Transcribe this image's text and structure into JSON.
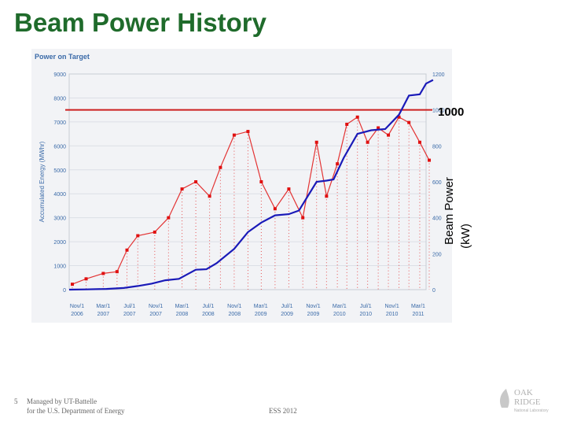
{
  "slide": {
    "title": "Beam Power History",
    "page_number": "5",
    "footer_line1": "Managed by UT-Battelle",
    "footer_line2": "for the U.S. Department of Energy",
    "footer_center": "ESS 2012",
    "logo_text": [
      "OAK",
      "RIDGE",
      "National Laboratory"
    ]
  },
  "chart_data": {
    "type": "line",
    "title": "Power on Target",
    "ylabel": "Accumulated Energy (MWhr)",
    "y2label_lines": [
      "Beam Power",
      "(kW)"
    ],
    "ylim": [
      0,
      9000
    ],
    "y2lim": [
      0,
      1200
    ],
    "yticks": [
      "0",
      "1000",
      "2000",
      "3000",
      "4000",
      "5000",
      "6000",
      "7000",
      "8000",
      "9000"
    ],
    "y2ticks": [
      "0",
      "200",
      "400",
      "600",
      "800",
      "1000",
      "1200"
    ],
    "x_ticks": [
      {
        "l1": "Nov/1",
        "l2": "2006"
      },
      {
        "l1": "Mar/1",
        "l2": "2007"
      },
      {
        "l1": "Jul/1",
        "l2": "2007"
      },
      {
        "l1": "Nov/1",
        "l2": "2007"
      },
      {
        "l1": "Mar/1",
        "l2": "2008"
      },
      {
        "l1": "Jul/1",
        "l2": "2008"
      },
      {
        "l1": "Nov/1",
        "l2": "2008"
      },
      {
        "l1": "Mar/1",
        "l2": "2009"
      },
      {
        "l1": "Jul/1",
        "l2": "2009"
      },
      {
        "l1": "Nov/1",
        "l2": "2009"
      },
      {
        "l1": "Mar/1",
        "l2": "2010"
      },
      {
        "l1": "Jul/1",
        "l2": "2010"
      },
      {
        "l1": "Nov/1",
        "l2": "2010"
      },
      {
        "l1": "Mar/1",
        "l2": "2011"
      }
    ],
    "reference_line": {
      "label": "1000",
      "value": 1000
    },
    "colors": {
      "energy": "#1a1ab8",
      "power": "#e01010",
      "reference": "#cc2020",
      "axis_text": "#3a6aa8",
      "title": "#3a6aa8"
    },
    "series": [
      {
        "axis": "left",
        "x": [
          "2006-11-01",
          "2007-01-15",
          "2007-04-15",
          "2007-07-01",
          "2007-09-01",
          "2007-11-01",
          "2008-01-01",
          "2008-03-01",
          "2008-05-15",
          "2008-07-01",
          "2008-08-15",
          "2008-11-01",
          "2009-01-01",
          "2009-03-01",
          "2009-05-01",
          "2009-07-01",
          "2009-08-15",
          "2009-11-01",
          "2009-12-15",
          "2010-01-15",
          "2010-03-01",
          "2010-05-01",
          "2010-07-01",
          "2010-09-01",
          "2010-11-01",
          "2010-12-15",
          "2011-02-01",
          "2011-03-01",
          "2011-04-01"
        ],
        "y": [
          0,
          10,
          30,
          70,
          150,
          250,
          390,
          450,
          830,
          850,
          1100,
          1700,
          2400,
          2800,
          3100,
          3150,
          3300,
          4500,
          4550,
          4600,
          5500,
          6500,
          6650,
          6700,
          7300,
          8100,
          8150,
          8600,
          8750
        ]
      },
      {
        "axis": "right",
        "x": [
          "2006-11-15",
          "2007-01-15",
          "2007-04-01",
          "2007-06-01",
          "2007-07-15",
          "2007-09-01",
          "2007-11-15",
          "2008-01-15",
          "2008-03-15",
          "2008-05-15",
          "2008-07-15",
          "2008-09-01",
          "2008-11-01",
          "2009-01-01",
          "2009-03-01",
          "2009-05-01",
          "2009-07-01",
          "2009-09-01",
          "2009-11-01",
          "2009-12-15",
          "2010-02-01",
          "2010-03-15",
          "2010-05-01",
          "2010-06-15",
          "2010-08-01",
          "2010-09-15",
          "2010-11-01",
          "2010-12-15",
          "2011-02-01",
          "2011-03-15"
        ],
        "y": [
          30,
          60,
          90,
          100,
          220,
          300,
          320,
          400,
          560,
          600,
          520,
          680,
          860,
          880,
          600,
          450,
          560,
          400,
          820,
          520,
          700,
          920,
          960,
          820,
          900,
          860,
          960,
          930,
          820,
          720
        ]
      }
    ]
  }
}
